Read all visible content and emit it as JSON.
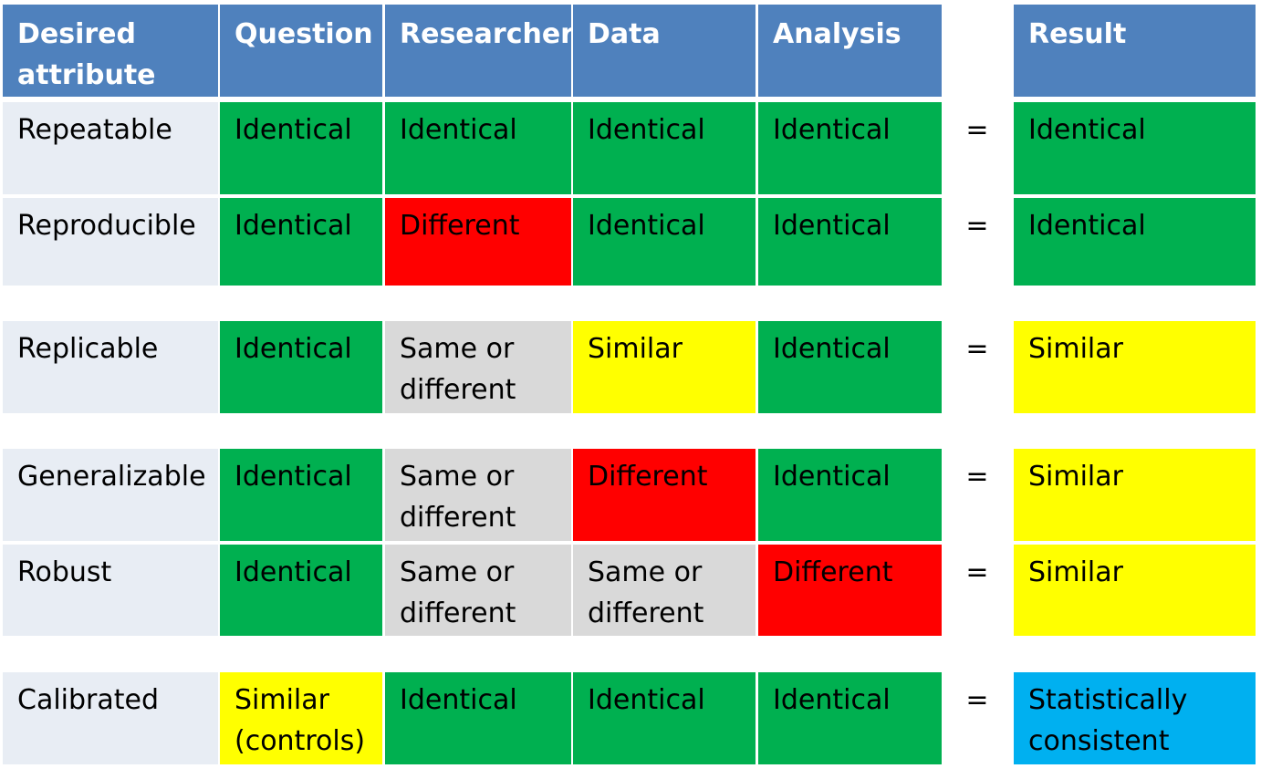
{
  "header": {
    "attribute": "Desired\nattribute",
    "question": "Question",
    "researcher": "Researcher",
    "data": "Data",
    "analysis": "Analysis",
    "result": "Result"
  },
  "colors": {
    "header": "#4f81bd",
    "identical": "#00b050",
    "different": "#ff0000",
    "similar": "#ffff00",
    "same_or_different": "#d9d9d9",
    "statistically_consistent": "#00b0f0",
    "attribute_cell": "#e8edf4"
  },
  "rows": [
    {
      "attribute": "Repeatable",
      "question": "Identical",
      "researcher": "Identical",
      "data": "Identical",
      "analysis": "Identical",
      "eq": "=",
      "result": "Identical"
    },
    {
      "attribute": "Reproducible",
      "question": "Identical",
      "researcher": "Different",
      "data": "Identical",
      "analysis": "Identical",
      "eq": "=",
      "result": "Identical"
    },
    {
      "attribute": "Replicable",
      "question": "Identical",
      "researcher": "Same or\ndifferent",
      "data": "Similar",
      "analysis": "Identical",
      "eq": "=",
      "result": "Similar"
    },
    {
      "attribute": "Generalizable",
      "question": "Identical",
      "researcher": "Same or\ndifferent",
      "data": "Different",
      "analysis": "Identical",
      "eq": "=",
      "result": "Similar"
    },
    {
      "attribute": "Robust",
      "question": "Identical",
      "researcher": "Same or\ndifferent",
      "data": "Same or\ndifferent",
      "analysis": "Different",
      "eq": "=",
      "result": "Similar"
    },
    {
      "attribute": "Calibrated",
      "question": "Similar\n(controls)",
      "researcher": "Identical",
      "data": "Identical",
      "analysis": "Identical",
      "eq": "=",
      "result": "Statistically\nconsistent"
    }
  ]
}
